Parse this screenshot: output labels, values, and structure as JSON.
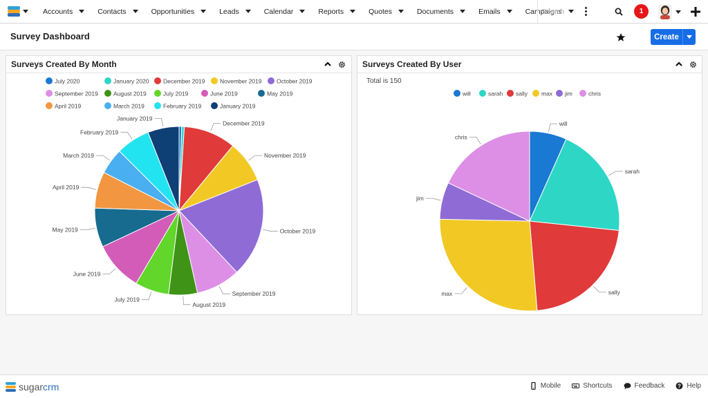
{
  "nav": {
    "items": [
      {
        "label": "Accounts"
      },
      {
        "label": "Contacts"
      },
      {
        "label": "Opportunities"
      },
      {
        "label": "Leads"
      },
      {
        "label": "Calendar"
      },
      {
        "label": "Reports"
      },
      {
        "label": "Quotes"
      },
      {
        "label": "Documents"
      },
      {
        "label": "Emails"
      },
      {
        "label": "Campaigns"
      }
    ],
    "search_placeholder": "Search",
    "notification_count": "1"
  },
  "header": {
    "title": "Survey Dashboard",
    "create_label": "Create"
  },
  "dashlets": [
    {
      "title": "Surveys Created By Month"
    },
    {
      "title": "Surveys Created By User",
      "total_text": "Total is 150"
    }
  ],
  "chart_data": [
    {
      "type": "pie",
      "title": "Surveys Created By Month",
      "legend_position": "top",
      "series": [
        {
          "name": "July 2020",
          "value": 0.5,
          "color": "#1a79d2"
        },
        {
          "name": "January 2020",
          "value": 0.5,
          "color": "#2ed6c6"
        },
        {
          "name": "December 2019",
          "value": 10,
          "color": "#e03a3a"
        },
        {
          "name": "November 2019",
          "value": 8,
          "color": "#f2c825"
        },
        {
          "name": "October 2019",
          "value": 19,
          "color": "#8f6bd6"
        },
        {
          "name": "September 2019",
          "value": 8.5,
          "color": "#dd8fe6"
        },
        {
          "name": "August 2019",
          "value": 5.5,
          "color": "#3f9417"
        },
        {
          "name": "July 2019",
          "value": 6.5,
          "color": "#62d62b"
        },
        {
          "name": "June 2019",
          "value": 9.5,
          "color": "#d45cb9"
        },
        {
          "name": "May 2019",
          "value": 7.5,
          "color": "#176b8e"
        },
        {
          "name": "April 2019",
          "value": 7,
          "color": "#f29641"
        },
        {
          "name": "March 2019",
          "value": 5,
          "color": "#4aaff0"
        },
        {
          "name": "February 2019",
          "value": 6.5,
          "color": "#22e4f0"
        },
        {
          "name": "January 2019",
          "value": 6,
          "color": "#0e3f75"
        }
      ]
    },
    {
      "type": "pie",
      "title": "Surveys Created By User",
      "legend_position": "top",
      "total": 150,
      "series": [
        {
          "name": "will",
          "value": 10,
          "color": "#1a79d2"
        },
        {
          "name": "sarah",
          "value": 30,
          "color": "#2ed6c6"
        },
        {
          "name": "sally",
          "value": 33,
          "color": "#e03a3a"
        },
        {
          "name": "max",
          "value": 40,
          "color": "#f2c825"
        },
        {
          "name": "jim",
          "value": 10,
          "color": "#8f6bd6"
        },
        {
          "name": "chris",
          "value": 27,
          "color": "#dd8fe6"
        }
      ]
    }
  ],
  "footer": {
    "brand_a": "sugar",
    "brand_b": "crm",
    "links": [
      {
        "label": "Mobile"
      },
      {
        "label": "Shortcuts"
      },
      {
        "label": "Feedback"
      },
      {
        "label": "Help"
      }
    ]
  }
}
